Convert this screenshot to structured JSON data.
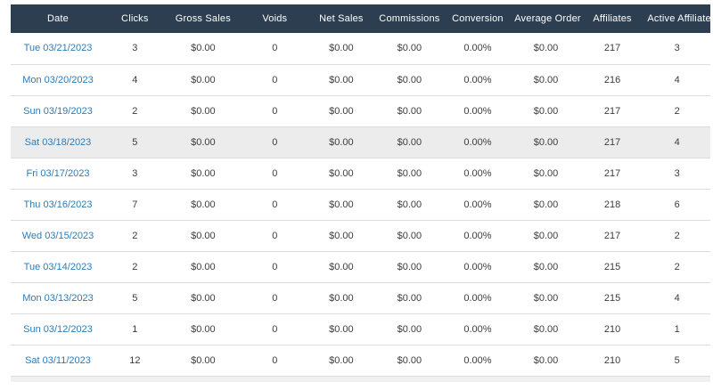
{
  "colors": {
    "header_bg": "#2d3e50",
    "header_text": "#ffffff",
    "date_link": "#2e7bb4",
    "cell_text": "#3d3d3d",
    "row_border": "#dcdcdc",
    "row_highlight": "#ececec",
    "bottom_sliver": "#f0f0f0"
  },
  "table": {
    "columns": [
      {
        "key": "date",
        "label": "Date"
      },
      {
        "key": "clicks",
        "label": "Clicks"
      },
      {
        "key": "gross_sales",
        "label": "Gross Sales"
      },
      {
        "key": "voids",
        "label": "Voids"
      },
      {
        "key": "net_sales",
        "label": "Net Sales"
      },
      {
        "key": "commissions",
        "label": "Commissions"
      },
      {
        "key": "conversion",
        "label": "Conversion"
      },
      {
        "key": "average_order",
        "label": "Average Order"
      },
      {
        "key": "affiliates",
        "label": "Affiliates"
      },
      {
        "key": "active_affiliates",
        "label": "Active Affiliates"
      }
    ],
    "rows": [
      {
        "date": "Tue 03/21/2023",
        "clicks": "3",
        "gross_sales": "$0.00",
        "voids": "0",
        "net_sales": "$0.00",
        "commissions": "$0.00",
        "conversion": "0.00%",
        "average_order": "$0.00",
        "affiliates": "217",
        "active_affiliates": "3",
        "highlighted": false
      },
      {
        "date": "Mon 03/20/2023",
        "clicks": "4",
        "gross_sales": "$0.00",
        "voids": "0",
        "net_sales": "$0.00",
        "commissions": "$0.00",
        "conversion": "0.00%",
        "average_order": "$0.00",
        "affiliates": "216",
        "active_affiliates": "4",
        "highlighted": false
      },
      {
        "date": "Sun 03/19/2023",
        "clicks": "2",
        "gross_sales": "$0.00",
        "voids": "0",
        "net_sales": "$0.00",
        "commissions": "$0.00",
        "conversion": "0.00%",
        "average_order": "$0.00",
        "affiliates": "217",
        "active_affiliates": "2",
        "highlighted": false
      },
      {
        "date": "Sat 03/18/2023",
        "clicks": "5",
        "gross_sales": "$0.00",
        "voids": "0",
        "net_sales": "$0.00",
        "commissions": "$0.00",
        "conversion": "0.00%",
        "average_order": "$0.00",
        "affiliates": "217",
        "active_affiliates": "4",
        "highlighted": true
      },
      {
        "date": "Fri 03/17/2023",
        "clicks": "3",
        "gross_sales": "$0.00",
        "voids": "0",
        "net_sales": "$0.00",
        "commissions": "$0.00",
        "conversion": "0.00%",
        "average_order": "$0.00",
        "affiliates": "217",
        "active_affiliates": "3",
        "highlighted": false
      },
      {
        "date": "Thu 03/16/2023",
        "clicks": "7",
        "gross_sales": "$0.00",
        "voids": "0",
        "net_sales": "$0.00",
        "commissions": "$0.00",
        "conversion": "0.00%",
        "average_order": "$0.00",
        "affiliates": "218",
        "active_affiliates": "6",
        "highlighted": false
      },
      {
        "date": "Wed 03/15/2023",
        "clicks": "2",
        "gross_sales": "$0.00",
        "voids": "0",
        "net_sales": "$0.00",
        "commissions": "$0.00",
        "conversion": "0.00%",
        "average_order": "$0.00",
        "affiliates": "217",
        "active_affiliates": "2",
        "highlighted": false
      },
      {
        "date": "Tue 03/14/2023",
        "clicks": "2",
        "gross_sales": "$0.00",
        "voids": "0",
        "net_sales": "$0.00",
        "commissions": "$0.00",
        "conversion": "0.00%",
        "average_order": "$0.00",
        "affiliates": "215",
        "active_affiliates": "2",
        "highlighted": false
      },
      {
        "date": "Mon 03/13/2023",
        "clicks": "5",
        "gross_sales": "$0.00",
        "voids": "0",
        "net_sales": "$0.00",
        "commissions": "$0.00",
        "conversion": "0.00%",
        "average_order": "$0.00",
        "affiliates": "215",
        "active_affiliates": "4",
        "highlighted": false
      },
      {
        "date": "Sun 03/12/2023",
        "clicks": "1",
        "gross_sales": "$0.00",
        "voids": "0",
        "net_sales": "$0.00",
        "commissions": "$0.00",
        "conversion": "0.00%",
        "average_order": "$0.00",
        "affiliates": "210",
        "active_affiliates": "1",
        "highlighted": false
      },
      {
        "date": "Sat 03/11/2023",
        "clicks": "12",
        "gross_sales": "$0.00",
        "voids": "0",
        "net_sales": "$0.00",
        "commissions": "$0.00",
        "conversion": "0.00%",
        "average_order": "$0.00",
        "affiliates": "210",
        "active_affiliates": "5",
        "highlighted": false
      }
    ]
  }
}
